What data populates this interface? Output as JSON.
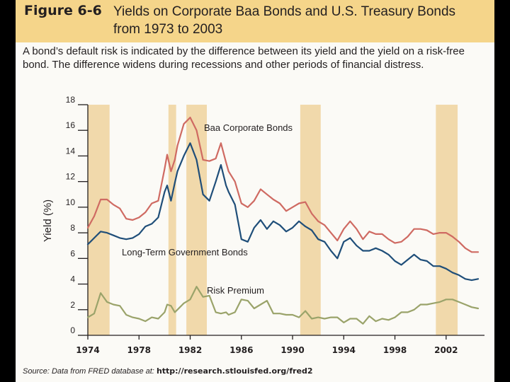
{
  "header": {
    "figure_label": "Figure 6-6",
    "title": "Yields on Corporate Baa Bonds and U.S. Treasury Bonds from 1973 to 2003"
  },
  "caption": "A bond’s default risk is indicated by the difference between its yield and the yield on a risk-free bond. The difference widens during recessions and other periods of financial distress.",
  "source": {
    "prefix": "Source: Data from FRED database at:",
    "url": "http://research.stlouisfed.org/fred2"
  },
  "colors": {
    "baa": "#cf6a62",
    "government": "#1f4e79",
    "premium": "#9aa36a",
    "recession": "#f1d9ab",
    "header": "#f5d58a"
  },
  "chart_data": {
    "type": "line",
    "title": "Yields on Corporate Baa Bonds and U.S. Treasury Bonds from 1973 to 2003",
    "xlabel": "",
    "ylabel": "Yield (%)",
    "xlim": [
      1974,
      2005
    ],
    "ylim": [
      0,
      18
    ],
    "yticks": [
      0,
      2,
      4,
      6,
      8,
      10,
      12,
      14,
      16,
      18
    ],
    "xticks": [
      1974,
      1978,
      1982,
      1986,
      1990,
      1994,
      1998,
      2002
    ],
    "recessions": [
      [
        1974.0,
        1975.7
      ],
      [
        1980.3,
        1980.9
      ],
      [
        1981.7,
        1983.3
      ],
      [
        1990.6,
        1992.2
      ],
      [
        2001.2,
        2002.9
      ]
    ],
    "series": [
      {
        "name": "Baa Corporate Bonds",
        "x": [
          1974,
          1974.5,
          1975,
          1975.5,
          1976,
          1976.5,
          1977,
          1977.5,
          1978,
          1978.5,
          1979,
          1979.5,
          1980,
          1980.2,
          1980.5,
          1980.8,
          1981,
          1981.5,
          1982,
          1982.5,
          1983,
          1983.5,
          1984,
          1984.4,
          1984.8,
          1985,
          1985.5,
          1986,
          1986.5,
          1987,
          1987.5,
          1988,
          1988.5,
          1989,
          1989.5,
          1990,
          1990.5,
          1991,
          1991.5,
          1992,
          1992.5,
          1993,
          1993.5,
          1994,
          1994.5,
          1995,
          1995.5,
          1996,
          1996.5,
          1997,
          1997.5,
          1998,
          1998.5,
          1999,
          1999.5,
          2000,
          2000.5,
          2001,
          2001.5,
          2002,
          2002.5,
          2003,
          2003.5,
          2004,
          2004.5
        ],
        "values": [
          8.4,
          9.3,
          10.6,
          10.6,
          10.2,
          9.9,
          9.1,
          9.0,
          9.2,
          9.6,
          10.3,
          10.5,
          13.0,
          14.1,
          12.8,
          13.7,
          14.8,
          16.5,
          17.0,
          16.0,
          13.7,
          13.6,
          13.8,
          15.0,
          13.5,
          12.8,
          12.0,
          10.3,
          10.0,
          10.5,
          11.4,
          11.0,
          10.6,
          10.3,
          9.7,
          10.0,
          10.3,
          10.4,
          9.5,
          8.9,
          8.6,
          8.0,
          7.4,
          8.3,
          8.9,
          8.3,
          7.5,
          8.1,
          7.9,
          7.9,
          7.5,
          7.2,
          7.3,
          7.7,
          8.3,
          8.3,
          8.2,
          7.9,
          8.0,
          8.0,
          7.7,
          7.3,
          6.8,
          6.5,
          6.5
        ]
      },
      {
        "name": "Long-Term Government Bonds",
        "x": [
          1974,
          1974.5,
          1975,
          1975.5,
          1976,
          1976.5,
          1977,
          1977.5,
          1978,
          1978.5,
          1979,
          1979.5,
          1980,
          1980.2,
          1980.5,
          1980.8,
          1981,
          1981.5,
          1982,
          1982.5,
          1983,
          1983.5,
          1984,
          1984.4,
          1984.8,
          1985,
          1985.5,
          1986,
          1986.5,
          1987,
          1987.5,
          1988,
          1988.5,
          1989,
          1989.5,
          1990,
          1990.5,
          1991,
          1991.5,
          1992,
          1992.5,
          1993,
          1993.5,
          1994,
          1994.5,
          1995,
          1995.5,
          1996,
          1996.5,
          1997,
          1997.5,
          1998,
          1998.5,
          1999,
          1999.5,
          2000,
          2000.5,
          2001,
          2001.5,
          2002,
          2002.5,
          2003,
          2003.5,
          2004,
          2004.5
        ],
        "values": [
          7.1,
          7.6,
          8.1,
          8.0,
          7.8,
          7.6,
          7.5,
          7.6,
          7.9,
          8.5,
          8.7,
          9.2,
          11.2,
          11.7,
          10.5,
          11.9,
          12.8,
          14.0,
          15.0,
          13.7,
          11.0,
          10.5,
          12.0,
          13.3,
          11.7,
          11.2,
          10.2,
          7.5,
          7.3,
          8.4,
          9.0,
          8.3,
          8.9,
          8.6,
          8.1,
          8.4,
          8.9,
          8.5,
          8.2,
          7.5,
          7.3,
          6.6,
          6.0,
          7.3,
          7.6,
          7.0,
          6.6,
          6.6,
          6.8,
          6.6,
          6.3,
          5.8,
          5.5,
          5.9,
          6.3,
          5.9,
          5.8,
          5.4,
          5.4,
          5.2,
          4.9,
          4.7,
          4.4,
          4.3,
          4.4
        ]
      },
      {
        "name": "Risk Premium",
        "x": [
          1974,
          1974.5,
          1975,
          1975.5,
          1976,
          1976.5,
          1977,
          1977.5,
          1978,
          1978.5,
          1979,
          1979.5,
          1980,
          1980.2,
          1980.5,
          1980.8,
          1981,
          1981.5,
          1982,
          1982.5,
          1983,
          1983.5,
          1984,
          1984.4,
          1984.8,
          1985,
          1985.5,
          1986,
          1986.5,
          1987,
          1987.5,
          1988,
          1988.5,
          1989,
          1989.5,
          1990,
          1990.5,
          1991,
          1991.5,
          1992,
          1992.5,
          1993,
          1993.5,
          1994,
          1994.5,
          1995,
          1995.5,
          1996,
          1996.5,
          1997,
          1997.5,
          1998,
          1998.5,
          1999,
          1999.5,
          2000,
          2000.5,
          2001,
          2001.5,
          2002,
          2002.5,
          2003,
          2003.5,
          2004,
          2004.5
        ],
        "values": [
          1.4,
          1.7,
          3.3,
          2.6,
          2.4,
          2.3,
          1.6,
          1.4,
          1.3,
          1.1,
          1.4,
          1.3,
          1.8,
          2.4,
          2.3,
          1.8,
          2.0,
          2.5,
          2.8,
          3.8,
          3.0,
          3.1,
          1.8,
          1.7,
          1.8,
          1.6,
          1.8,
          2.8,
          2.7,
          2.1,
          2.4,
          2.7,
          1.7,
          1.7,
          1.6,
          1.6,
          1.4,
          1.9,
          1.3,
          1.4,
          1.3,
          1.4,
          1.4,
          1.0,
          1.3,
          1.3,
          0.9,
          1.5,
          1.1,
          1.3,
          1.2,
          1.4,
          1.8,
          1.8,
          2.0,
          2.4,
          2.4,
          2.5,
          2.6,
          2.8,
          2.8,
          2.6,
          2.4,
          2.2,
          2.1
        ]
      }
    ]
  }
}
